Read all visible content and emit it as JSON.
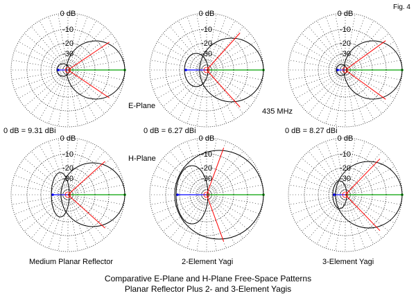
{
  "figure_label": "Fig. 4",
  "plane_labels": {
    "e_plane": "E-Plane",
    "h_plane": "H-Plane"
  },
  "frequency": "435 MHz",
  "ring_labels": {
    "outer": "0 dB",
    "mid": "-10",
    "inner1": "-20",
    "inner2": "-30"
  },
  "antennas": [
    {
      "name": "Medium Planar Reflector",
      "gain_ref": "0 dB = 9.31 dBi"
    },
    {
      "name": "2-Element Yagi",
      "gain_ref": "0 dB = 6.27 dBi"
    },
    {
      "name": "3-Element Yagi",
      "gain_ref": "0 dB = 8.27 dBi"
    }
  ],
  "caption": {
    "line1": "Comparative E-Plane and H-Plane Free-Space Patterns",
    "line2": "Planar Reflector Plus 2- and 3-Element Yagis"
  },
  "colors": {
    "forward_axis": "#00a000",
    "rear_axis": "#0000ff",
    "beamwidth_lines": "#ff0000",
    "pattern": "#000000",
    "grid": "#000000"
  }
}
